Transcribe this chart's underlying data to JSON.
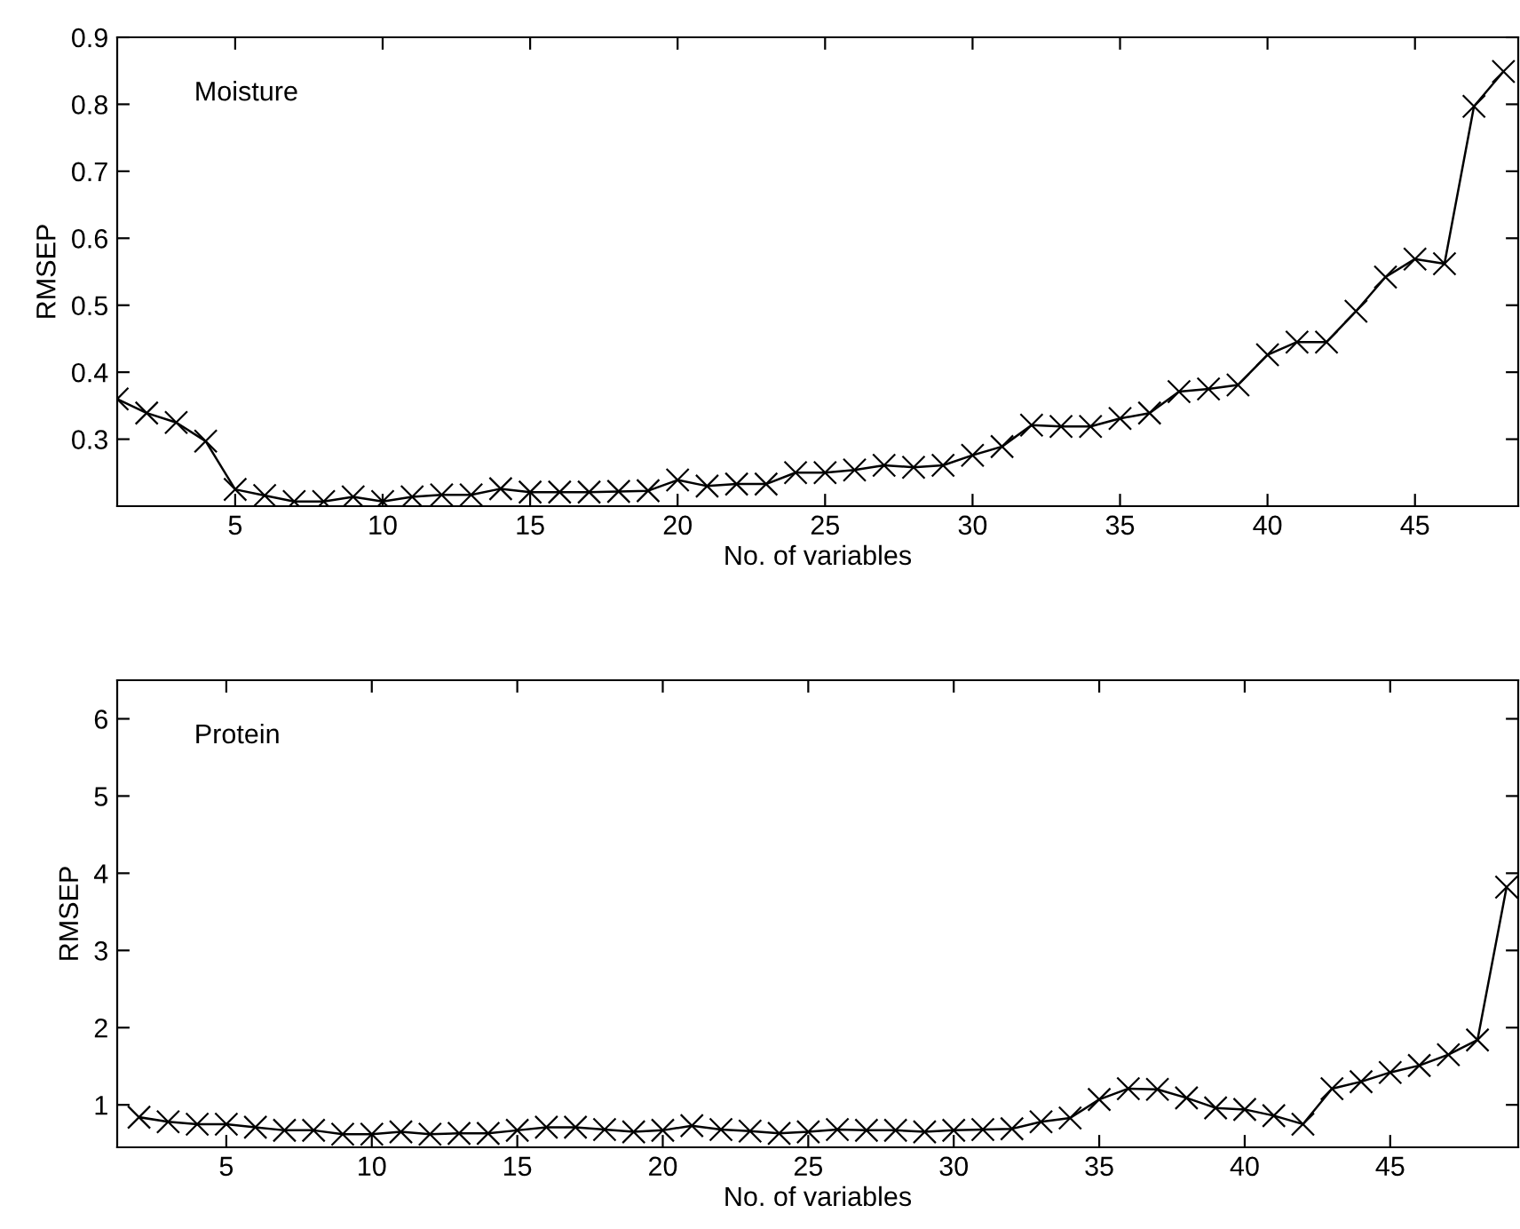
{
  "chart_data": [
    {
      "type": "line",
      "xlabel": "No. of variables",
      "ylabel": "RMSEP",
      "annotations": [
        "Moisture"
      ],
      "marker": "cross",
      "line_style": "solid",
      "grid": false,
      "legend": false,
      "x": [
        1,
        2,
        3,
        4,
        5,
        6,
        7,
        8,
        9,
        10,
        11,
        12,
        13,
        14,
        15,
        16,
        17,
        18,
        19,
        20,
        21,
        22,
        23,
        24,
        25,
        26,
        27,
        28,
        29,
        30,
        31,
        32,
        33,
        34,
        35,
        36,
        37,
        38,
        39,
        40,
        41,
        42,
        43,
        44,
        45,
        46,
        47,
        48
      ],
      "series": [
        {
          "color": "#000000",
          "values": [
            0.36,
            0.339,
            0.325,
            0.297,
            0.225,
            0.216,
            0.207,
            0.207,
            0.214,
            0.207,
            0.214,
            0.217,
            0.217,
            0.226,
            0.221,
            0.221,
            0.221,
            0.222,
            0.223,
            0.239,
            0.23,
            0.233,
            0.233,
            0.25,
            0.25,
            0.254,
            0.261,
            0.258,
            0.261,
            0.276,
            0.289,
            0.321,
            0.319,
            0.319,
            0.331,
            0.339,
            0.371,
            0.375,
            0.381,
            0.426,
            0.445,
            0.445,
            0.491,
            0.542,
            0.569,
            0.562,
            0.797,
            0.849
          ]
        }
      ],
      "xlim": [
        1,
        48.5
      ],
      "ylim": [
        0.2,
        0.9
      ],
      "xticks": [
        5,
        10,
        15,
        20,
        25,
        30,
        35,
        40,
        45
      ],
      "yticks": [
        0.3,
        0.4,
        0.5,
        0.6,
        0.7,
        0.8,
        0.9
      ]
    },
    {
      "type": "line",
      "xlabel": "No. of variables",
      "ylabel": "RMSEP",
      "annotations": [
        "Protein"
      ],
      "marker": "cross",
      "line_style": "solid",
      "grid": false,
      "legend": false,
      "x": [
        2,
        3,
        4,
        5,
        6,
        7,
        8,
        9,
        10,
        11,
        12,
        13,
        14,
        15,
        16,
        17,
        18,
        19,
        20,
        21,
        22,
        23,
        24,
        25,
        26,
        27,
        28,
        29,
        30,
        31,
        32,
        33,
        34,
        35,
        36,
        37,
        38,
        39,
        40,
        41,
        42,
        43,
        44,
        45,
        46,
        47,
        48,
        49
      ],
      "series": [
        {
          "color": "#000000",
          "values": [
            0.84,
            0.78,
            0.75,
            0.75,
            0.71,
            0.67,
            0.67,
            0.62,
            0.62,
            0.65,
            0.62,
            0.63,
            0.63,
            0.67,
            0.71,
            0.71,
            0.68,
            0.65,
            0.67,
            0.73,
            0.68,
            0.66,
            0.63,
            0.65,
            0.68,
            0.67,
            0.67,
            0.65,
            0.67,
            0.68,
            0.69,
            0.78,
            0.83,
            1.07,
            1.21,
            1.2,
            1.09,
            0.96,
            0.94,
            0.86,
            0.75,
            1.21,
            1.3,
            1.42,
            1.51,
            1.65,
            1.84,
            3.82
          ]
        }
      ],
      "xlim": [
        1.25,
        49.4
      ],
      "ylim": [
        0.45,
        6.5
      ],
      "xticks": [
        5,
        10,
        15,
        20,
        25,
        30,
        35,
        40,
        45
      ],
      "yticks": [
        1,
        2,
        3,
        4,
        5,
        6
      ]
    }
  ]
}
